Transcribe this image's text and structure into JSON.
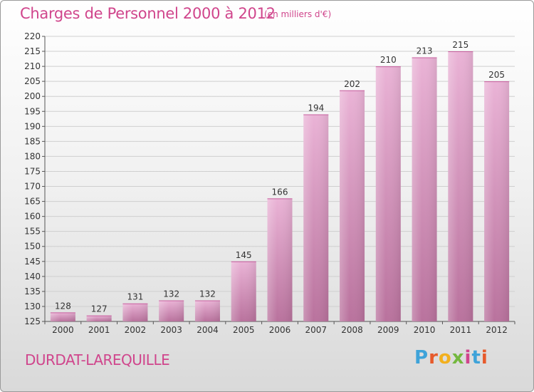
{
  "header": {
    "title": "Charges de Personnel 2000 à 2012",
    "unit_note": "(en milliers d'€)"
  },
  "footer": {
    "place": "DURDAT-LAREQUILLE",
    "logo_letters": [
      "P",
      "r",
      "o",
      "x",
      "i",
      "t",
      "i"
    ]
  },
  "colors": {
    "accent": "#d0458c",
    "bar_light": "#eab3d6",
    "bar_dark": "#b9729d",
    "grid": "#cfcfcf"
  },
  "chart_data": {
    "type": "bar",
    "title": "Charges de Personnel 2000 à 2012",
    "subtitle": "(en milliers d'€)",
    "categories": [
      "2000",
      "2001",
      "2002",
      "2003",
      "2004",
      "2005",
      "2006",
      "2007",
      "2008",
      "2009",
      "2010",
      "2011",
      "2012"
    ],
    "values": [
      128,
      127,
      131,
      132,
      132,
      145,
      166,
      194,
      202,
      210,
      213,
      215,
      205
    ],
    "ylim": [
      125,
      220
    ],
    "yticks": [
      125,
      130,
      135,
      140,
      145,
      150,
      155,
      160,
      165,
      170,
      175,
      180,
      185,
      190,
      195,
      200,
      205,
      210,
      215,
      220
    ],
    "grid": true,
    "legend": "none"
  }
}
